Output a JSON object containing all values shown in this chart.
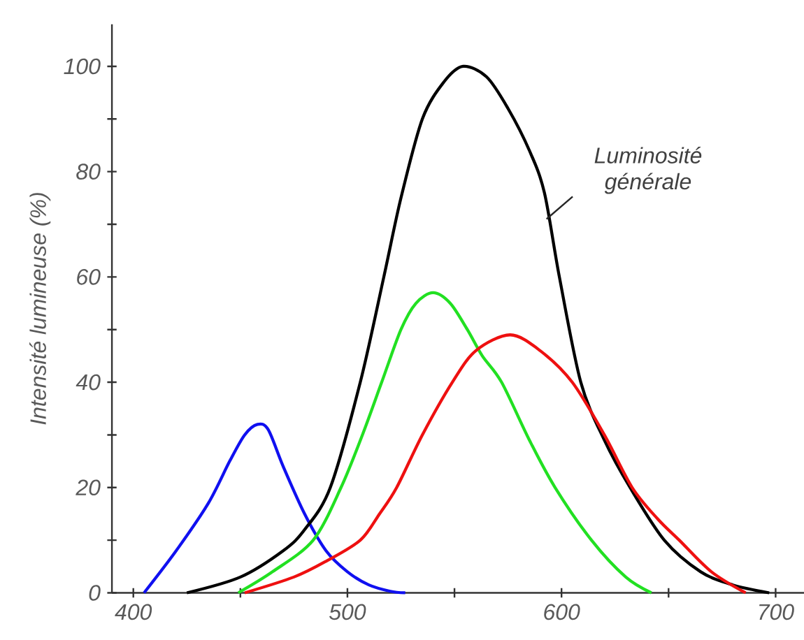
{
  "chart_data": {
    "type": "line",
    "ylabel": "Intensité lumineuse (%)",
    "xlim": [
      390,
      715
    ],
    "ylim": [
      0,
      108
    ],
    "xticks": [
      400,
      {
        "value": 450,
        "label": null
      },
      500,
      {
        "value": 550,
        "label": null
      },
      600,
      {
        "value": 650,
        "label": null
      },
      700
    ],
    "yticks": [
      0,
      {
        "value": 10,
        "label": null
      },
      20,
      {
        "value": 30,
        "label": null
      },
      40,
      {
        "value": 50,
        "label": null
      },
      60,
      {
        "value": 70,
        "label": null
      },
      80,
      {
        "value": 90,
        "label": null
      },
      100
    ],
    "marker": "none",
    "line_style": "solid",
    "annotations": [
      {
        "text": "Luminosité générale",
        "x": 593,
        "y": 71
      }
    ],
    "series": [
      {
        "color": "#1010f0",
        "x": [
          405,
          420,
          435,
          445,
          452,
          458,
          463,
          470,
          480,
          490,
          500,
          510,
          520,
          527
        ],
        "values": [
          0,
          8,
          17,
          25,
          30,
          32,
          31,
          24,
          15,
          8,
          4,
          1.5,
          0.3,
          0
        ]
      },
      {
        "color": "#000000",
        "x": [
          425,
          450,
          470,
          480,
          492,
          506,
          517,
          525,
          535,
          545,
          554,
          565,
          575,
          585,
          592,
          599,
          609,
          620,
          632,
          648,
          665,
          680,
          697
        ],
        "values": [
          0,
          3,
          8,
          12,
          20,
          40,
          60,
          75,
          90,
          97,
          100,
          98,
          92,
          84,
          76,
          60,
          40,
          29,
          20,
          10,
          4,
          1.5,
          0
        ]
      },
      {
        "color": "#22e022",
        "x": [
          449,
          465,
          484,
          497,
          507,
          516,
          525,
          532,
          540,
          548,
          556,
          563,
          572,
          585,
          597,
          614,
          630,
          642
        ],
        "values": [
          0,
          4,
          10,
          20,
          30,
          40,
          50,
          55,
          57,
          55,
          50,
          45,
          40,
          29,
          20,
          10,
          3,
          0
        ]
      },
      {
        "color": "#ee1010",
        "x": [
          452,
          475,
          490,
          506,
          515,
          523,
          535,
          549,
          560,
          576,
          590,
          605,
          620,
          633,
          645,
          655,
          670,
          686
        ],
        "values": [
          0,
          3,
          6,
          10,
          15,
          20,
          30,
          40,
          46,
          49,
          46,
          40,
          30,
          20,
          14,
          10,
          4,
          0
        ]
      }
    ]
  }
}
